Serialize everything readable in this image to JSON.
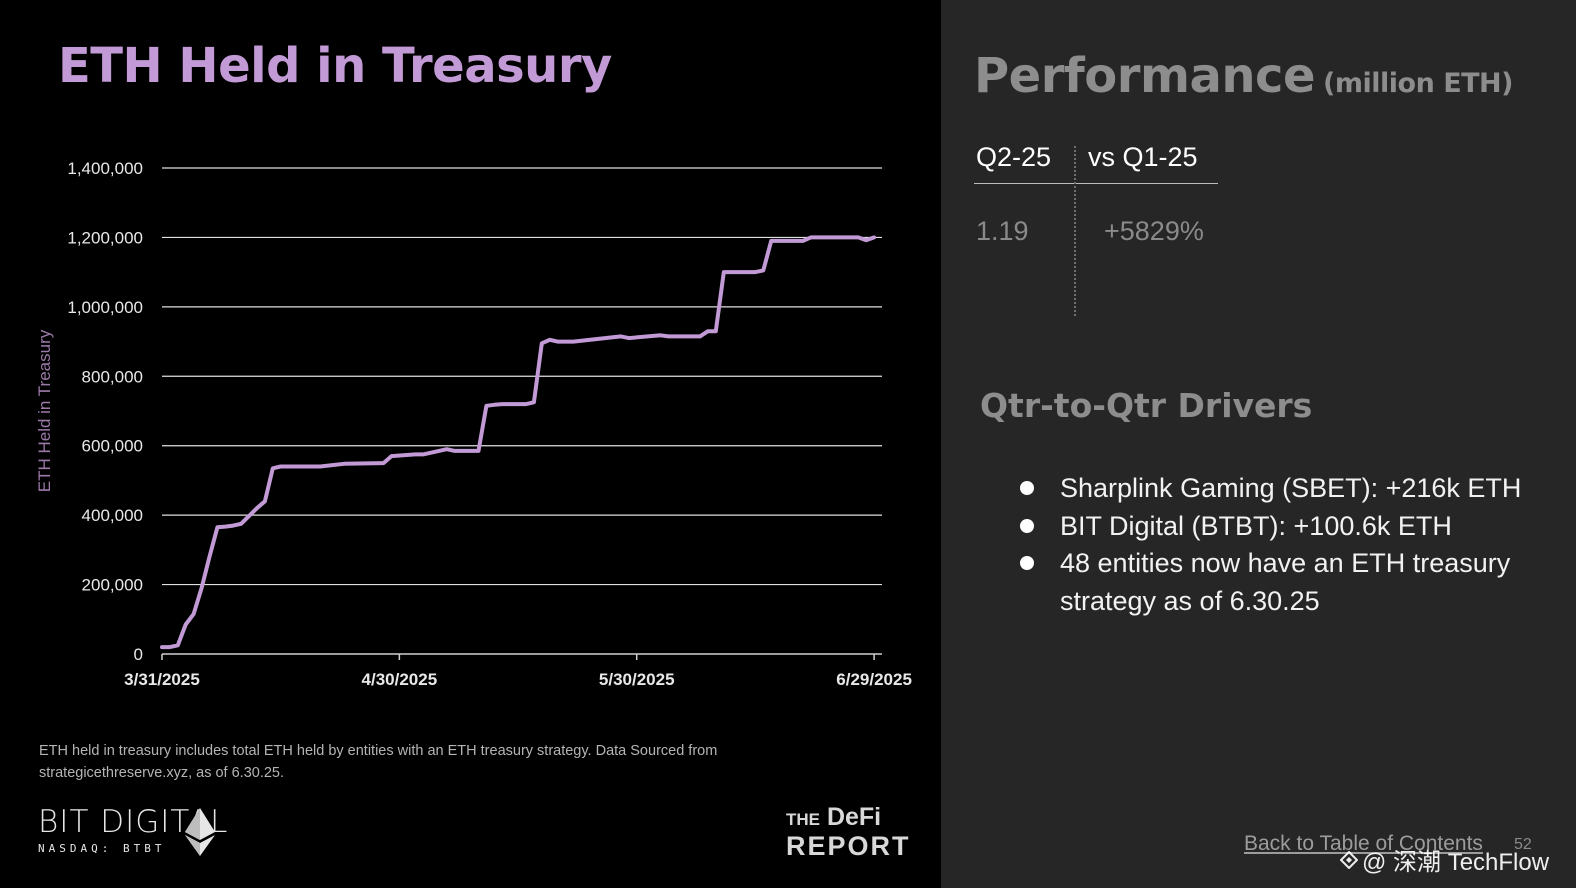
{
  "left": {
    "title": "ETH Held in Treasury",
    "footnote": "ETH held in treasury includes total ETH held by entities with an ETH treasury strategy. Data Sourced from strategicethreserve.xyz, as of 6.30.25.",
    "logo_left": {
      "name": "BIT DIGITAL",
      "ticker": "NASDAQ: BTBT"
    },
    "logo_right": {
      "line1_small": "THE",
      "line1": "DeFi",
      "line2": "REPORT"
    }
  },
  "chart_data": {
    "type": "line",
    "title": "ETH Held in Treasury",
    "xlabel": "",
    "ylabel": "ETH Held in Treasury",
    "ylim": [
      0,
      1400000
    ],
    "xlim": [
      "2025-03-31",
      "2025-06-30"
    ],
    "grid": true,
    "line_color": "#c29ad6",
    "y_ticks": [
      0,
      200000,
      400000,
      600000,
      800000,
      1000000,
      1200000,
      1400000
    ],
    "y_tick_labels": [
      "0",
      "200,000",
      "400,000",
      "600,000",
      "800,000",
      "1,000,000",
      "1,200,000",
      "1,400,000"
    ],
    "x_ticks": [
      "2025-03-31",
      "2025-04-30",
      "2025-05-30",
      "2025-06-29"
    ],
    "x_tick_labels": [
      "3/31/2025",
      "4/30/2025",
      "5/30/2025",
      "6/29/2025"
    ],
    "series": [
      {
        "x": [
          "2025-03-31",
          "2025-04-01",
          "2025-04-02",
          "2025-04-03",
          "2025-04-04",
          "2025-04-05",
          "2025-04-06",
          "2025-04-07",
          "2025-04-08",
          "2025-04-09",
          "2025-04-10",
          "2025-04-12",
          "2025-04-13",
          "2025-04-14",
          "2025-04-15",
          "2025-04-16",
          "2025-04-20",
          "2025-04-23",
          "2025-04-28",
          "2025-04-29",
          "2025-05-02",
          "2025-05-03",
          "2025-05-06",
          "2025-05-07",
          "2025-05-10",
          "2025-05-11",
          "2025-05-12",
          "2025-05-13",
          "2025-05-14",
          "2025-05-16",
          "2025-05-17",
          "2025-05-18",
          "2025-05-19",
          "2025-05-20",
          "2025-05-22",
          "2025-05-28",
          "2025-05-29",
          "2025-06-02",
          "2025-06-03",
          "2025-06-06",
          "2025-06-07",
          "2025-06-08",
          "2025-06-09",
          "2025-06-10",
          "2025-06-13",
          "2025-06-14",
          "2025-06-15",
          "2025-06-16",
          "2025-06-18",
          "2025-06-20",
          "2025-06-21",
          "2025-06-26",
          "2025-06-27",
          "2025-06-28",
          "2025-06-29"
        ],
        "values": [
          20000,
          20000,
          25000,
          85000,
          115000,
          190000,
          280000,
          365000,
          367000,
          370000,
          375000,
          420000,
          440000,
          535000,
          540000,
          540000,
          540000,
          548000,
          550000,
          570000,
          575000,
          575000,
          590000,
          585000,
          585000,
          715000,
          718000,
          720000,
          720000,
          720000,
          725000,
          895000,
          905000,
          900000,
          900000,
          915000,
          910000,
          918000,
          915000,
          915000,
          915000,
          930000,
          930000,
          1100000,
          1100000,
          1100000,
          1105000,
          1190000,
          1190000,
          1190000,
          1200000,
          1200000,
          1200000,
          1192000,
          1200000
        ]
      }
    ]
  },
  "right": {
    "title": "Performance",
    "title_unit": "(million ETH)",
    "table": {
      "headers": [
        "Q2-25",
        "vs Q1-25"
      ],
      "values": [
        "1.19",
        "+5829%"
      ]
    },
    "drivers_title": "Qtr-to-Qtr Drivers",
    "drivers": [
      "Sharplink Gaming (SBET): +216k ETH",
      "BIT Digital (BTBT): +100.6k ETH",
      "48 entities now have an ETH treasury strategy as of 6.30.25"
    ],
    "toc_link": "Back to Table of Contents",
    "page_number": "52",
    "watermark": "@ 深潮 TechFlow"
  }
}
